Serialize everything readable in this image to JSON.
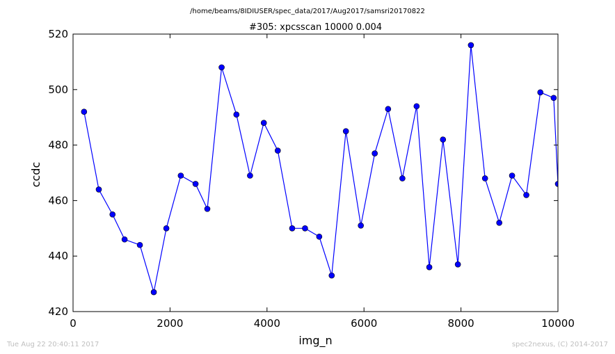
{
  "figure": {
    "suptitle": "/home/beams/8IDIUSER/spec_data/2017/Aug2017/samsri20170822",
    "footer_left": "Tue Aug 22 20:40:11 2017",
    "footer_right": "spec2nexus, (C) 2014-2017"
  },
  "chart_data": {
    "type": "line",
    "title": "#305: xpcsscan 10000 0.004",
    "xlabel": "img_n",
    "ylabel": "ccdc",
    "xlim": [
      0,
      10000
    ],
    "ylim": [
      420,
      520
    ],
    "xticks": [
      "0",
      "2000",
      "4000",
      "6000",
      "8000",
      "10000"
    ],
    "yticks": [
      "420",
      "440",
      "460",
      "480",
      "500",
      "520"
    ],
    "grid": false,
    "line_color": "#0000ff",
    "marker_color": "#0000ff",
    "series": [
      {
        "x": [
          227,
          531,
          814,
          1063,
          1378,
          1665,
          1924,
          2222,
          2526,
          2769,
          3064,
          3369,
          3650,
          3934,
          4222,
          4519,
          4784,
          5077,
          5334,
          5627,
          5935,
          6222,
          6497,
          6792,
          7085,
          7347,
          7629,
          7936,
          8205,
          8496,
          8790,
          9054,
          9348,
          9637,
          9912,
          10000
        ],
        "y": [
          492,
          464,
          455,
          446,
          444,
          427,
          450,
          469,
          466,
          457,
          508,
          491,
          469,
          488,
          478,
          450,
          450,
          447,
          433,
          485,
          451,
          477,
          493,
          468,
          494,
          436,
          482,
          437,
          516,
          468,
          452,
          469,
          462,
          499,
          497,
          466
        ]
      }
    ]
  }
}
